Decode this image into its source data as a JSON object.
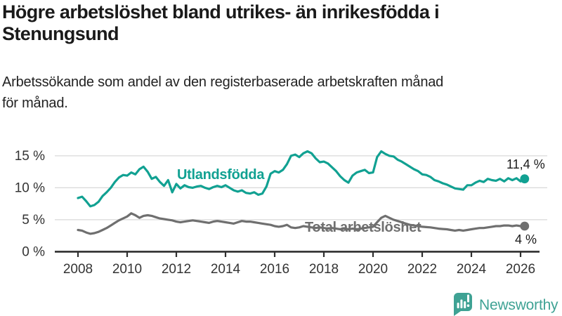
{
  "title": {
    "line1": "Högre arbetslöshet bland utrikes- än inrikesfödda i",
    "line2": "Stenungsund"
  },
  "subtitle": {
    "line1": "Arbetssökande som andel av den registerbaserade arbetskraften månad",
    "line2": "för månad."
  },
  "chart_data": {
    "type": "line",
    "title": "Högre arbetslöshet bland utrikes- än inrikesfödda i Stenungsund",
    "xlabel": "",
    "ylabel": "",
    "x_start": 2008,
    "points_per_year": 6,
    "x_end_approx": 2026.17,
    "xlim": [
      2007.2,
      2027.2
    ],
    "ylim": [
      0,
      16.5
    ],
    "grid": "horizontal-light",
    "legend_position": "inline-labels",
    "x_ticks": [
      "2008",
      "2010",
      "2012",
      "2014",
      "2016",
      "2018",
      "2020",
      "2022",
      "2024",
      "2026"
    ],
    "y_ticks": [
      "0 %",
      "5 %",
      "10 %",
      "15 %"
    ],
    "y_tick_values": [
      0,
      5,
      10,
      15
    ],
    "series": [
      {
        "id": "utlandsfodda",
        "name": "Utlandsfödda",
        "color": "#11a192",
        "end_label": "11,4 %",
        "end_value": 11.4,
        "values": [
          8.4,
          8.6,
          7.9,
          7.1,
          7.3,
          7.8,
          8.7,
          9.3,
          10.0,
          10.9,
          11.6,
          12.0,
          11.9,
          12.4,
          12.1,
          12.9,
          13.3,
          12.5,
          11.4,
          11.7,
          10.9,
          10.3,
          11.2,
          9.3,
          10.6,
          9.9,
          10.4,
          10.1,
          10.0,
          10.2,
          10.3,
          10.0,
          9.8,
          10.1,
          10.3,
          10.1,
          10.4,
          10.0,
          9.6,
          9.4,
          9.6,
          9.2,
          9.1,
          9.3,
          8.9,
          9.1,
          10.2,
          12.2,
          12.6,
          12.4,
          12.8,
          13.7,
          15.0,
          15.2,
          14.8,
          15.4,
          15.7,
          15.4,
          14.6,
          14.0,
          14.1,
          13.8,
          13.2,
          12.6,
          11.8,
          11.2,
          10.8,
          11.9,
          12.4,
          12.6,
          12.8,
          12.3,
          12.4,
          14.8,
          15.7,
          15.3,
          15.0,
          14.9,
          14.4,
          14.1,
          13.7,
          13.3,
          12.9,
          12.6,
          12.1,
          12.0,
          11.7,
          11.2,
          11.0,
          10.7,
          10.5,
          10.2,
          9.9,
          9.8,
          9.7,
          10.4,
          10.4,
          10.8,
          11.1,
          10.9,
          11.4,
          11.2,
          11.1,
          11.4,
          11.0,
          11.5,
          11.2,
          11.5,
          11.0,
          11.4
        ]
      },
      {
        "id": "total",
        "name": "Total arbetslöshet",
        "color": "#6f6f6f",
        "end_label": "4 %",
        "end_value": 4.0,
        "values": [
          3.4,
          3.3,
          3.0,
          2.8,
          2.9,
          3.1,
          3.4,
          3.7,
          4.1,
          4.5,
          4.9,
          5.2,
          5.5,
          6.0,
          5.7,
          5.3,
          5.6,
          5.7,
          5.6,
          5.4,
          5.2,
          5.1,
          5.0,
          4.9,
          4.7,
          4.6,
          4.7,
          4.8,
          4.9,
          4.8,
          4.7,
          4.6,
          4.5,
          4.7,
          4.8,
          4.7,
          4.6,
          4.5,
          4.4,
          4.6,
          4.8,
          4.7,
          4.7,
          4.6,
          4.5,
          4.4,
          4.3,
          4.2,
          4.0,
          3.9,
          4.0,
          4.2,
          3.8,
          3.7,
          3.8,
          4.0,
          3.9,
          3.8,
          3.7,
          3.8,
          3.7,
          3.6,
          3.7,
          3.6,
          3.5,
          3.6,
          3.5,
          3.6,
          3.5,
          3.6,
          3.7,
          3.8,
          3.9,
          4.6,
          5.3,
          5.6,
          5.3,
          5.0,
          4.8,
          4.6,
          4.4,
          4.2,
          4.1,
          4.0,
          3.9,
          3.85,
          3.8,
          3.7,
          3.6,
          3.55,
          3.5,
          3.4,
          3.3,
          3.4,
          3.3,
          3.4,
          3.5,
          3.6,
          3.7,
          3.7,
          3.8,
          3.9,
          4.0,
          4.0,
          4.1,
          4.1,
          4.0,
          4.1,
          4.0,
          4.0
        ]
      }
    ]
  },
  "branding": {
    "logo_text": "Newsworthy",
    "logo_color": "#3fa294"
  }
}
